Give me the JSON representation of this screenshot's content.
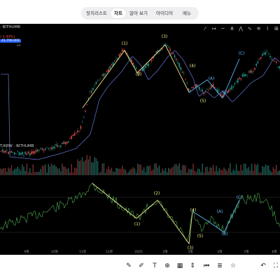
{
  "tabs": [
    {
      "label": "잣치리스트",
      "active": false
    },
    {
      "label": "차트",
      "active": true
    },
    {
      "label": "알아 보기",
      "active": false
    },
    {
      "label": "아이디어",
      "active": false
    },
    {
      "label": "메뉴",
      "active": false
    }
  ],
  "header": {
    "symbol": "· BITHUMB",
    "change": "(-1.49%)",
    "price_tag": "41,790,000",
    "price_sub": "0/0",
    "mid_symbol": "T/KRW · BITHUMB"
  },
  "x_axis": {
    "labels": [
      "9월",
      "10월",
      "11월",
      "12월",
      "2025",
      "2월",
      "3월",
      "4월",
      "5월",
      "6월"
    ]
  },
  "price_waves": [
    {
      "label": "(1)"
    },
    {
      "label": "(2)"
    },
    {
      "label": "(3)"
    },
    {
      "label": "(4)"
    },
    {
      "label": "(5)"
    },
    {
      "label": "(A)"
    },
    {
      "label": "(B)"
    },
    {
      "label": "(C)"
    }
  ],
  "osc_waves": [
    {
      "label": "(1)"
    },
    {
      "label": "(2)"
    },
    {
      "label": "(3)"
    },
    {
      "label": "(4)"
    },
    {
      "label": "(5)"
    },
    {
      "label": "(A)"
    },
    {
      "label": "(B)"
    },
    {
      "label": "(C)"
    }
  ],
  "draw_tools": [
    "trend-line-icon",
    "horizontal-ray-icon",
    "ray-icon",
    "pitchfork-icon",
    "xabcd-icon",
    "elliott-wave-icon",
    "fib-icon",
    "brush-icon",
    "measure-icon"
  ],
  "bottom_tools": [
    "pencil-icon",
    "brush-icon",
    "text-icon",
    "add-icon",
    "calendar-icon",
    "price-range-icon",
    "skip-back-icon",
    "layers-icon",
    "star-icon",
    "undo-icon",
    "fullscreen-icon"
  ],
  "colors": {
    "background": "#000000",
    "wave_line": "#f0e88a",
    "osc_line": "#4caf50",
    "ma_line": "#5c6bc0",
    "up_candle": "#26a69a",
    "down_candle": "#ef5350",
    "abc_line": "#64b5f6"
  }
}
